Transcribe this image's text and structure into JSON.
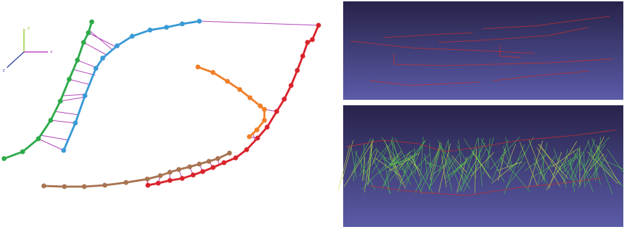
{
  "axis_labels": {
    "y": "y",
    "x": "x",
    "z": "z"
  }
}
